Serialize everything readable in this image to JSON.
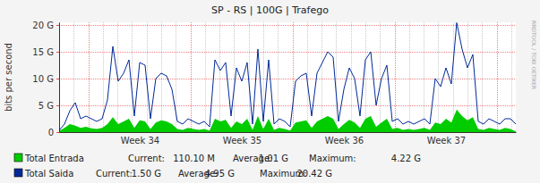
{
  "chart_data": {
    "type": "line",
    "title": "SP - RS | 100G | Trafego",
    "ylabel": "bits per second",
    "annotations": [
      "RRDTOOL / TOBI OETIKER"
    ],
    "categories": [
      null,
      null,
      null,
      null,
      null,
      null,
      null,
      null,
      null,
      null,
      null,
      null,
      null,
      null,
      null,
      "Week 34",
      null,
      null,
      null,
      null,
      null,
      null,
      null,
      null,
      null,
      null,
      null,
      null,
      null,
      null,
      null,
      null,
      null,
      null,
      "Week 35",
      null,
      null,
      null,
      null,
      null,
      null,
      null,
      null,
      null,
      null,
      null,
      null,
      null,
      null,
      null,
      null,
      null,
      null,
      "Week 36",
      null,
      null,
      null,
      null,
      null,
      null,
      null,
      null,
      null,
      null,
      null,
      null,
      null,
      null,
      null,
      null,
      null,
      null,
      "Week 37",
      null,
      null,
      null,
      null,
      null,
      null,
      null,
      null,
      null,
      null,
      null,
      null,
      null
    ],
    "series": [
      {
        "name": "Total Entrada",
        "type": "area",
        "color": "#00cc00",
        "stats": [
          {
            "label": "Current:",
            "text": "110.10 M"
          },
          {
            "label": "Average:",
            "text": "1.01 G"
          },
          {
            "label": "Maximum:",
            "text": "4.22 G"
          }
        ],
        "values": [
          0.2,
          0.8,
          1.5,
          1.2,
          0.8,
          1.0,
          0.7,
          0.6,
          0.8,
          1.5,
          2.8,
          1.5,
          2.0,
          2.5,
          0.8,
          2.2,
          2.0,
          0.6,
          1.8,
          2.2,
          2.0,
          1.5,
          0.6,
          0.4,
          0.8,
          0.6,
          0.4,
          0.6,
          0.3,
          2.5,
          2.0,
          2.3,
          0.8,
          2.0,
          1.5,
          2.5,
          0.4,
          3.0,
          0.6,
          2.5,
          0.4,
          0.8,
          0.6,
          0.3,
          1.8,
          2.0,
          2.2,
          0.8,
          2.0,
          2.5,
          3.0,
          2.5,
          0.6,
          1.5,
          2.3,
          1.8,
          0.8,
          2.5,
          3.0,
          1.0,
          1.8,
          2.5,
          0.6,
          0.8,
          0.4,
          0.6,
          0.4,
          0.6,
          0.8,
          0.4,
          1.8,
          1.5,
          2.5,
          1.8,
          4.22,
          3.0,
          2.2,
          2.8,
          0.6,
          0.4,
          0.8,
          0.6,
          0.4,
          0.8,
          0.6,
          0.11
        ]
      },
      {
        "name": "Total Saida",
        "type": "line",
        "color": "#002a97",
        "stats": [
          {
            "label": "Current:",
            "text": "1.50 G"
          },
          {
            "label": "Average:",
            "text": "4.95 G"
          },
          {
            "label": "Maximum:",
            "text": "20.42 G"
          }
        ],
        "values": [
          0.3,
          1.5,
          4.0,
          5.5,
          2.5,
          3.0,
          2.5,
          2.0,
          2.5,
          6.0,
          16.0,
          9.5,
          11.0,
          13.5,
          3.0,
          13.0,
          12.5,
          2.5,
          10.0,
          11.0,
          10.5,
          8.0,
          2.0,
          1.5,
          2.5,
          2.0,
          1.5,
          2.0,
          1.0,
          13.5,
          11.5,
          13.0,
          3.0,
          12.0,
          9.5,
          13.0,
          1.5,
          15.5,
          2.0,
          13.5,
          1.5,
          2.5,
          2.0,
          1.0,
          9.5,
          10.5,
          11.0,
          3.0,
          11.0,
          13.0,
          15.0,
          14.0,
          2.0,
          8.0,
          12.0,
          10.0,
          3.0,
          13.5,
          15.0,
          5.0,
          10.0,
          12.5,
          2.0,
          2.5,
          1.5,
          2.0,
          1.5,
          2.0,
          2.5,
          1.5,
          10.0,
          8.5,
          12.0,
          9.0,
          20.42,
          15.5,
          12.0,
          14.5,
          2.0,
          1.5,
          2.5,
          2.0,
          1.5,
          2.5,
          2.5,
          1.5
        ]
      }
    ],
    "ylim": [
      0,
      20.5
    ],
    "yticks": [
      0,
      {
        "value": 5,
        "label": "5 G"
      },
      {
        "value": 10,
        "label": "10 G"
      },
      {
        "value": 15,
        "label": "15 G"
      },
      {
        "value": 20,
        "label": "20 G"
      }
    ],
    "grid": true,
    "legend": "bottom-left"
  }
}
